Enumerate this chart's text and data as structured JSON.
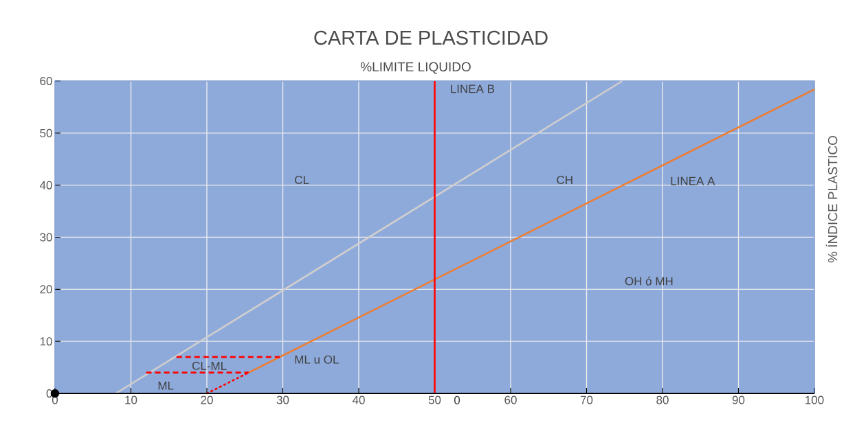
{
  "chart_data": {
    "type": "line",
    "title": "CARTA DE PLASTICIDAD",
    "xlabel": "%LIMITE LIQUIDO",
    "ylabel": "% ÍNDICE  PLASTICO",
    "xlim": [
      0,
      100
    ],
    "ylim": [
      0,
      60
    ],
    "xticks": [
      0,
      10,
      20,
      30,
      40,
      50,
      60,
      70,
      80,
      90,
      100
    ],
    "yticks": [
      0,
      10,
      20,
      30,
      40,
      50,
      60
    ],
    "grid": true,
    "marker": "none",
    "series": [
      {
        "color": "#d0cece",
        "x": [
          8,
          74.7
        ],
        "values": [
          0,
          60
        ]
      },
      {
        "color": "#ed7d31",
        "x": [
          25.5,
          100
        ],
        "values": [
          4,
          58.4
        ]
      },
      {
        "color": "#ff0000",
        "x": [
          20,
          25.5
        ],
        "values": [
          0,
          4
        ],
        "line_style": "dotted"
      },
      {
        "color": "#ff0000",
        "x": [
          50,
          50
        ],
        "values": [
          0,
          60
        ]
      },
      {
        "color": "#ff0000",
        "x": [
          16,
          29.6
        ],
        "values": [
          7,
          7
        ],
        "line_style": "dashed"
      },
      {
        "color": "#ff0000",
        "x": [
          12,
          25.5
        ],
        "values": [
          4,
          4
        ],
        "line_style": "dashed"
      },
      {
        "type": "scatter",
        "color": "#000000",
        "x": [
          0
        ],
        "values": [
          0
        ],
        "marker": "circle"
      }
    ],
    "annotations": [
      "LINEA B",
      "CL",
      "CH",
      "LINEA A",
      "OH ó MH",
      "ML u OL",
      "CL-ML",
      "ML",
      "0"
    ]
  }
}
